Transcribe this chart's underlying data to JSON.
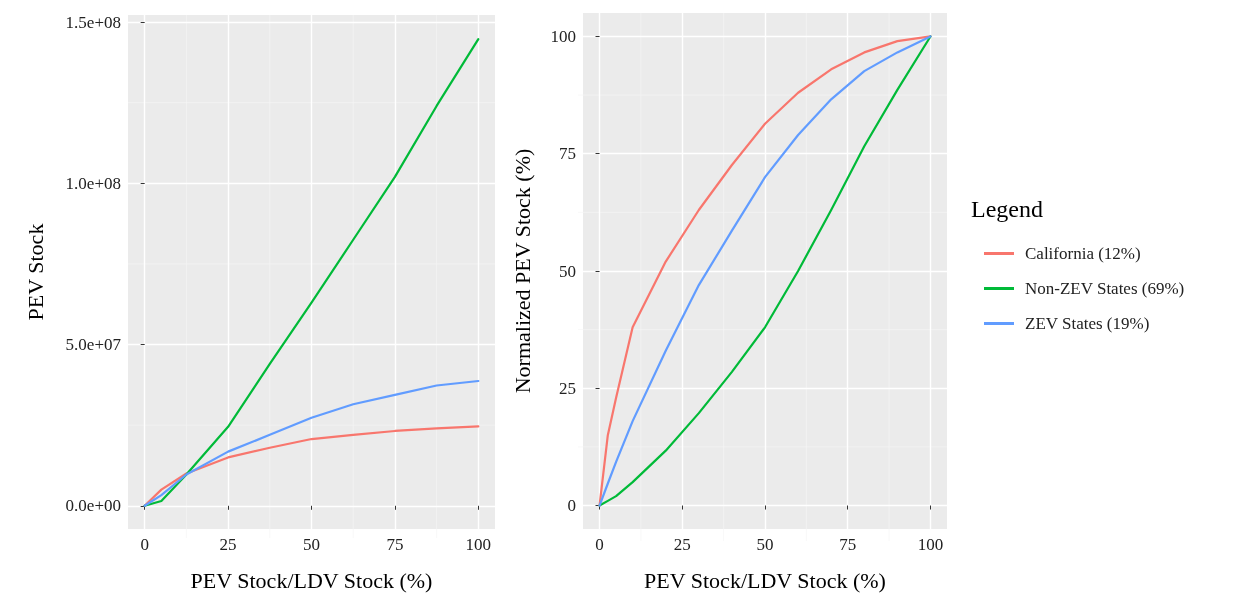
{
  "chart_data": [
    {
      "type": "line",
      "xlabel": "PEV Stock/LDV Stock (%)",
      "ylabel": "PEV Stock",
      "x": [
        0,
        5,
        12.5,
        25,
        37.5,
        50,
        62.5,
        75,
        87.5,
        100
      ],
      "series": [
        {
          "color": "#f8766d",
          "values": [
            0,
            5000000,
            10000000,
            15000000,
            18000000,
            20700000,
            22000000,
            23200000,
            24000000,
            24600000
          ]
        },
        {
          "color": "#00ba38",
          "values": [
            0,
            1500000,
            9700000,
            24500000,
            44000000,
            63000000,
            82500000,
            102000000,
            124000000,
            144700000
          ]
        },
        {
          "color": "#619cff",
          "values": [
            0,
            3300000,
            9700000,
            16800000,
            22000000,
            27300000,
            31500000,
            34400000,
            37300000,
            38700000
          ]
        }
      ],
      "xlim": [
        -5,
        105
      ],
      "xticks": [
        0,
        25,
        50,
        75,
        100
      ],
      "ylim": [
        -7200000,
        152200000
      ],
      "yticks": [
        {
          "value": 0,
          "label": "0.0e+00"
        },
        {
          "value": 50000000,
          "label": "5.0e+07"
        },
        {
          "value": 100000000,
          "label": "1.0e+08"
        },
        {
          "value": 150000000,
          "label": "1.5e+08"
        }
      ],
      "grid": true,
      "legend": false
    },
    {
      "type": "line",
      "xlabel": "PEV Stock/LDV Stock (%)",
      "ylabel": "Normalized PEV Stock (%)",
      "legend_title": "Legend",
      "x": [
        0,
        2.5,
        5,
        10,
        20,
        30,
        40,
        50,
        60,
        70,
        80,
        90,
        100
      ],
      "series": [
        {
          "name": "California (12%)",
          "color": "#f8766d",
          "values": [
            0,
            15,
            23,
            38,
            52,
            63,
            72.6,
            81.4,
            88,
            93,
            96.6,
            99,
            100
          ]
        },
        {
          "name": "Non-ZEV States (69%)",
          "color": "#00ba38",
          "values": [
            0,
            1,
            2,
            5,
            11.7,
            19.7,
            28.5,
            38,
            50,
            63,
            76.6,
            88.6,
            100
          ]
        },
        {
          "name": "ZEV States (19%)",
          "color": "#619cff",
          "values": [
            0,
            4.7,
            9.3,
            18,
            33,
            47,
            58.6,
            70,
            79,
            86.6,
            92.6,
            96.6,
            100
          ]
        }
      ],
      "xlim": [
        -5,
        105
      ],
      "xticks": [
        0,
        25,
        50,
        75,
        100
      ],
      "ylim": [
        -5,
        105
      ],
      "yticks": [
        0,
        25,
        50,
        75,
        100
      ],
      "grid": true,
      "legend": "right"
    }
  ]
}
